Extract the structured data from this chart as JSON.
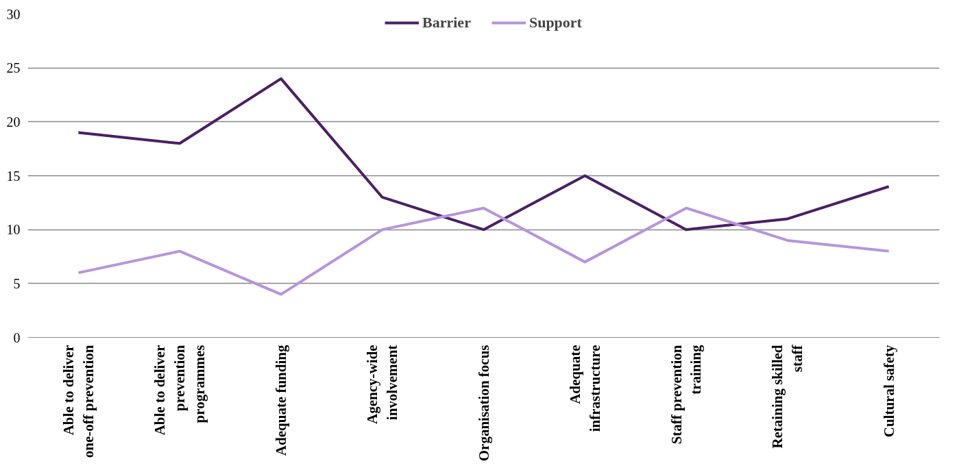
{
  "chart_data": {
    "type": "line",
    "categories": [
      "Able to deliver one-off prevention",
      "Able to deliver prevention programmes",
      "Adequate funding",
      "Agency-wide involvement",
      "Organisation focus",
      "Adequate infrastructure",
      "Staff prevention training",
      "Retaining skilled staff",
      "Cultural safety"
    ],
    "series": [
      {
        "name": "Barrier",
        "color": "#4b2064",
        "values": [
          19,
          18,
          24,
          13,
          10,
          15,
          10,
          11,
          14
        ]
      },
      {
        "name": "Support",
        "color": "#b794dc",
        "values": [
          6,
          8,
          4,
          10,
          12,
          7,
          12,
          9,
          8
        ]
      }
    ],
    "ylim": [
      0,
      30
    ],
    "yticks": [
      0,
      5,
      10,
      15,
      20,
      25,
      30
    ],
    "grid": "y",
    "legend": "top",
    "marker": "none",
    "line_style": "solid"
  }
}
